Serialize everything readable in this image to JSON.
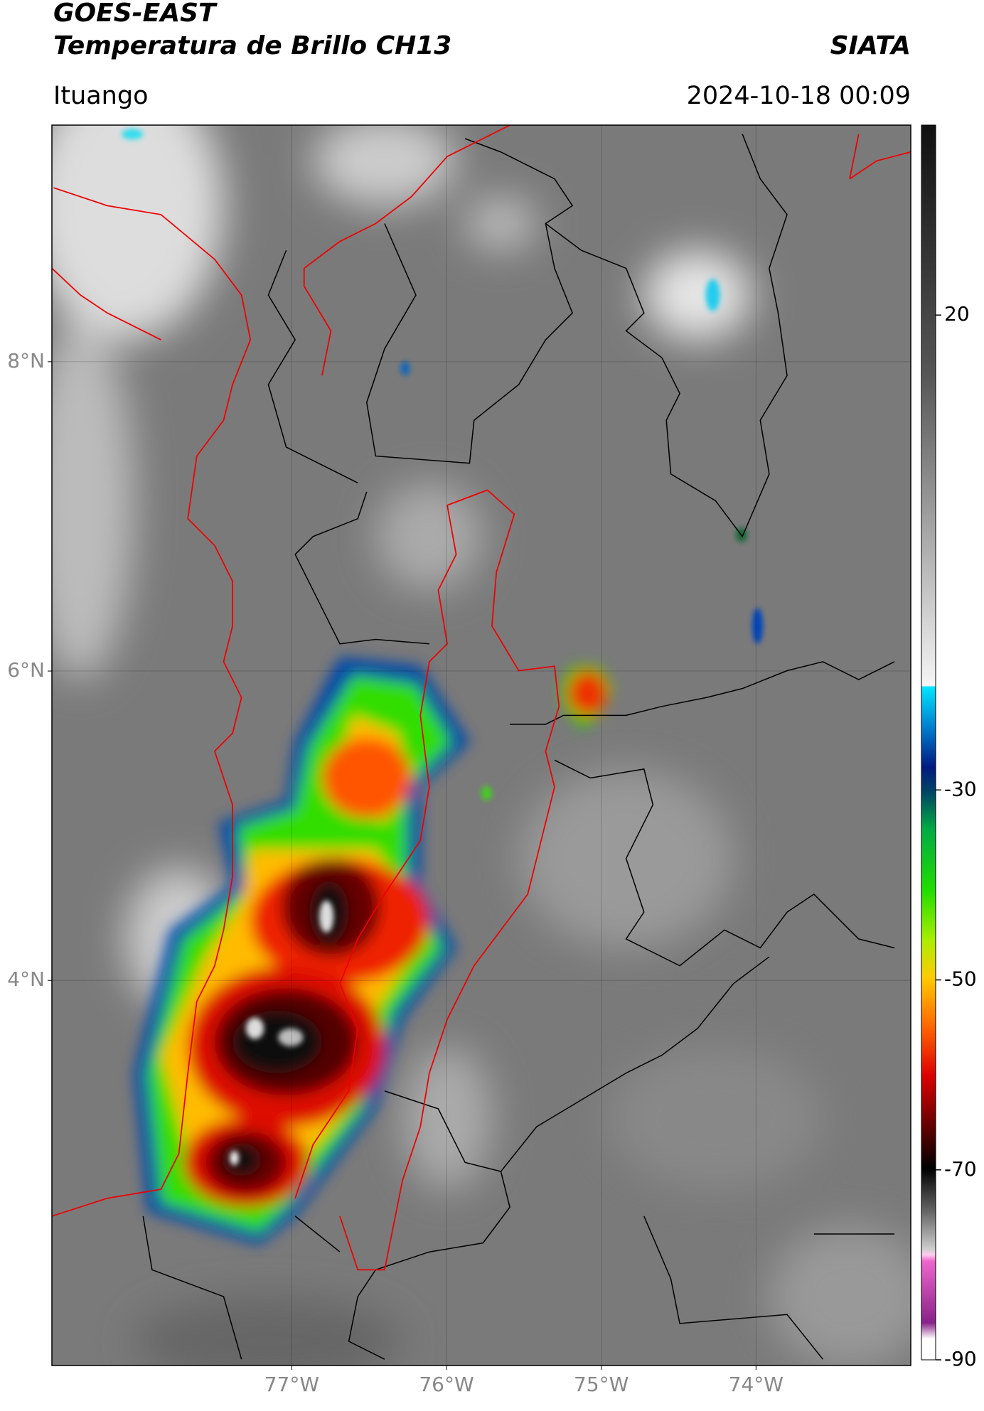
{
  "chart_data": {
    "type": "map",
    "title": "GOES-EAST",
    "subtitle": "Temperatura de Brillo CH13",
    "source": "SIATA",
    "location": "Ituango",
    "datetime": "2024-10-18 00:09",
    "xlim": [
      -78.55,
      -73
    ],
    "ylim": [
      1.51,
      9.53
    ],
    "xticks": [
      {
        "value": -77,
        "label": "77°W"
      },
      {
        "value": -76,
        "label": "76°W"
      },
      {
        "value": -75,
        "label": "75°W"
      },
      {
        "value": -74,
        "label": "74°W"
      }
    ],
    "yticks": [
      {
        "value": 4,
        "label": "4°N"
      },
      {
        "value": 6,
        "label": "6°N"
      },
      {
        "value": 8,
        "label": "8°N"
      }
    ],
    "grid": true,
    "colorbar": {
      "lim": [
        -90,
        40
      ],
      "ticks": [
        -90,
        -70,
        -50,
        -30,
        20
      ]
    }
  }
}
